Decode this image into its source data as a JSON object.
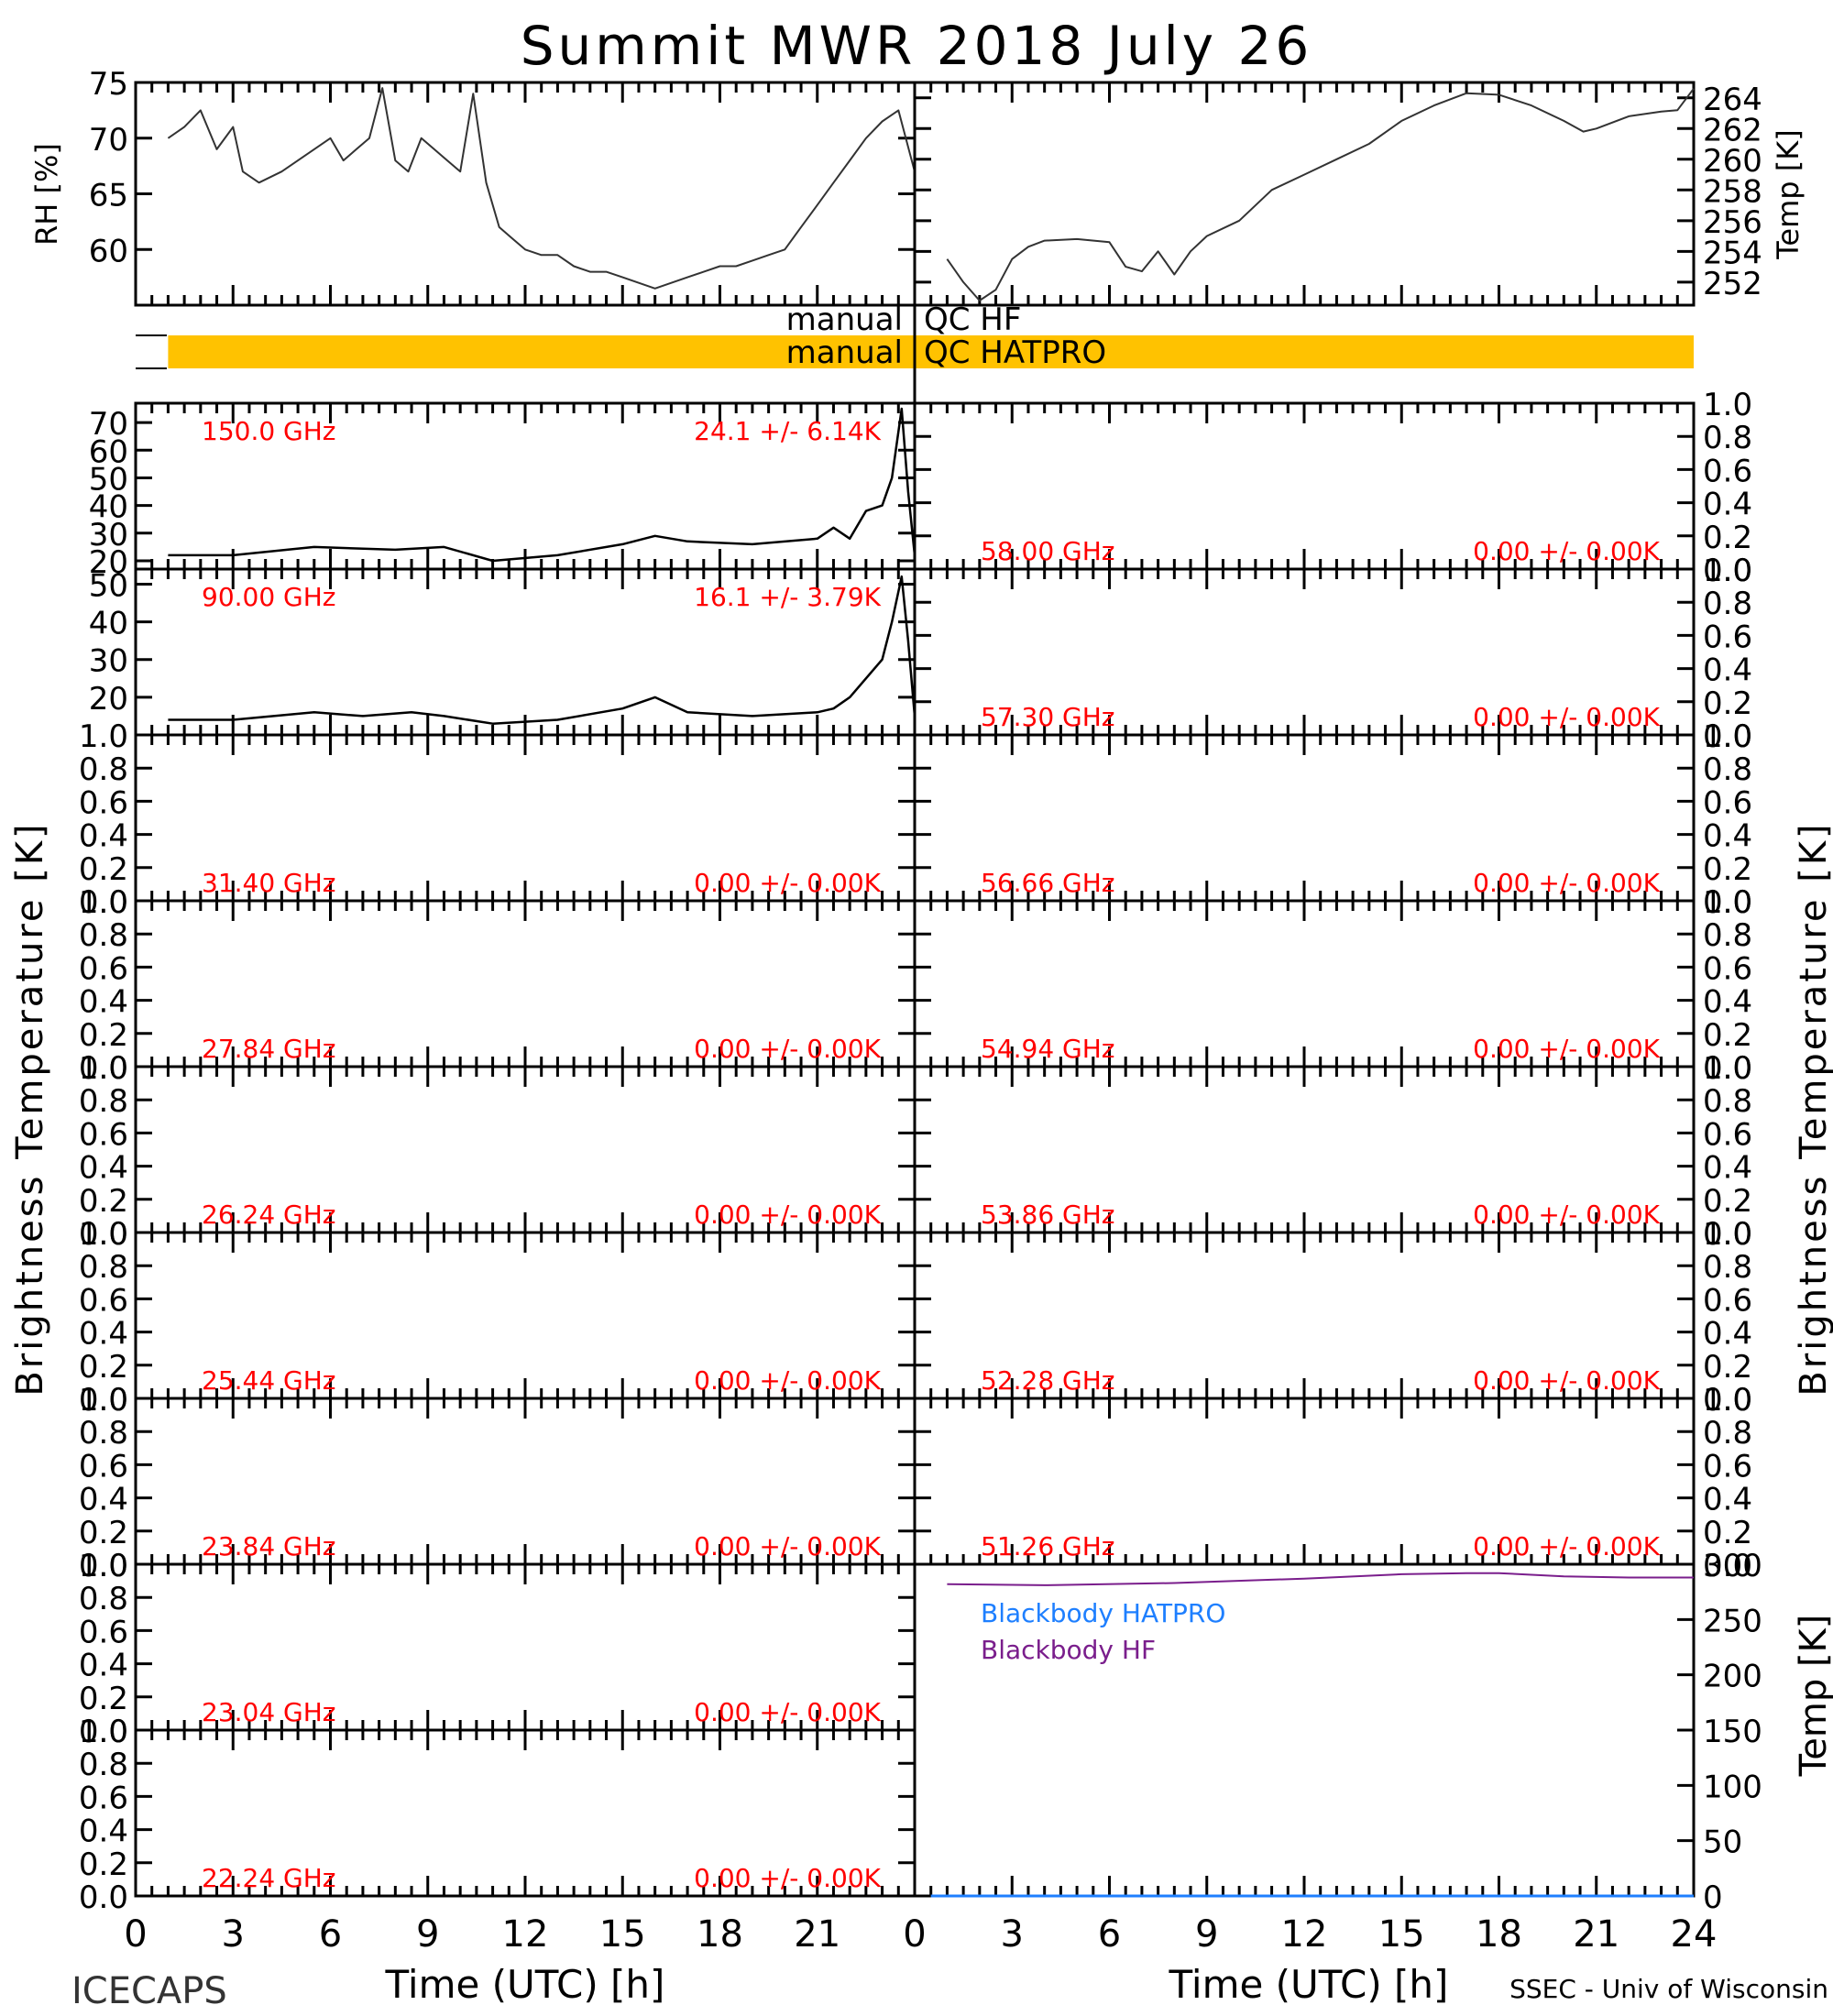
{
  "title": "Summit MWR 2018 July 26",
  "footer": {
    "left": "ICECAPS",
    "right": "SSEC - Univ of Wisconsin",
    "xlabel": "Time (UTC) [h]"
  },
  "colors": {
    "data_red": "#ff0000",
    "qc_bar": "#ffc200",
    "bb_hatpro": "#1e7fff",
    "bb_hf": "#7a1e8c",
    "axis": "#000000"
  },
  "qc": {
    "hf_label_left": "manual",
    "hf_label_right": "QC HF",
    "hatpro_label_left": "manual",
    "hatpro_label_right": "QC HATPRO",
    "hatpro_flag_hours": [
      1.0,
      24
    ]
  },
  "side_labels": {
    "left": "Brightness Temperature [K]",
    "right": "Brightness Temperature [K]"
  },
  "chart_data": [
    {
      "id": "rh",
      "type": "line",
      "ylabel": "RH [%]",
      "ylim": [
        55,
        75
      ],
      "yticks": [
        60,
        65,
        70,
        75
      ],
      "xlim": [
        0,
        24
      ],
      "x_hours": [
        1.0,
        1.5,
        2.0,
        2.5,
        3.0,
        3.3,
        3.8,
        4.5,
        5.0,
        5.5,
        6.0,
        6.4,
        6.8,
        7.2,
        7.6,
        8.0,
        8.4,
        8.8,
        9.2,
        9.6,
        10.0,
        10.4,
        10.8,
        11.2,
        11.6,
        12.0,
        12.5,
        13.0,
        13.5,
        14.0,
        14.5,
        15.0,
        15.5,
        16.0,
        16.5,
        17.0,
        17.5,
        18.0,
        18.5,
        19.0,
        19.5,
        20.0,
        20.5,
        21.0,
        21.5,
        22.0,
        22.5,
        23.0,
        23.5,
        24.0
      ],
      "values": [
        70,
        71,
        72.5,
        69,
        71,
        67,
        66,
        67,
        68,
        69,
        70,
        68,
        69,
        70,
        74.5,
        68,
        67,
        70,
        69,
        68,
        67,
        74,
        66,
        62,
        61,
        60,
        59.5,
        59.5,
        58.5,
        58,
        58,
        57.5,
        57,
        56.5,
        57,
        57.5,
        58,
        58.5,
        58.5,
        59,
        59.5,
        60,
        62,
        64,
        66,
        68,
        70,
        71.5,
        72.5,
        67
      ]
    },
    {
      "id": "temp",
      "type": "line",
      "ylabel": "Temp [K]",
      "ylim": [
        250.5,
        265
      ],
      "yticks": [
        252,
        254,
        256,
        258,
        260,
        262,
        264
      ],
      "xlim": [
        0,
        24
      ],
      "x_hours": [
        1.0,
        1.5,
        2.0,
        2.5,
        3.0,
        3.5,
        4.0,
        5.0,
        6.0,
        6.5,
        7.0,
        7.5,
        8.0,
        8.5,
        9.0,
        10.0,
        11.0,
        12.0,
        13.0,
        14.0,
        15.0,
        16.0,
        17.0,
        18.0,
        19.0,
        20.0,
        20.6,
        21.0,
        22.0,
        23.0,
        23.5,
        24.0
      ],
      "values": [
        253.5,
        252.0,
        250.8,
        251.5,
        253.5,
        254.3,
        254.7,
        254.8,
        254.6,
        253.0,
        252.7,
        254.0,
        252.5,
        254.0,
        255.0,
        256.0,
        258.0,
        259.0,
        260.0,
        261.0,
        262.5,
        263.5,
        264.3,
        264.2,
        263.5,
        262.5,
        261.8,
        262.0,
        262.8,
        263.1,
        263.2,
        264.6
      ]
    },
    {
      "id": "ch-150",
      "type": "line",
      "label": "150.0 GHz",
      "stats": "24.1 +/-  6.14K",
      "ylim": [
        17,
        77
      ],
      "yticks": [
        20,
        30,
        40,
        50,
        60,
        70
      ],
      "xlim": [
        0,
        24
      ],
      "x_hours": [
        1.0,
        3.0,
        5.5,
        8.0,
        9.5,
        11.0,
        13.0,
        15.0,
        16.0,
        17.0,
        19.0,
        21.0,
        21.5,
        22.0,
        22.5,
        23.0,
        23.3,
        23.6,
        23.8,
        24.0
      ],
      "values": [
        22,
        22,
        25,
        24,
        25,
        20,
        22,
        26,
        29,
        27,
        26,
        28,
        32,
        28,
        38,
        40,
        50,
        75,
        45,
        22
      ]
    },
    {
      "id": "ch-58",
      "type": "line",
      "label": "58.00 GHz",
      "stats": "0.00 +/-  0.00K",
      "ylim": [
        0,
        1
      ],
      "yticks": [
        0,
        0.2,
        0.4,
        0.6,
        0.8,
        1.0
      ],
      "values": []
    },
    {
      "id": "ch-90",
      "type": "line",
      "label": "90.00 GHz",
      "stats": "16.1 +/-  3.79K",
      "ylim": [
        10,
        54
      ],
      "yticks": [
        20,
        30,
        40,
        50
      ],
      "xlim": [
        0,
        24
      ],
      "x_hours": [
        1.0,
        3.0,
        5.5,
        7.0,
        8.5,
        9.5,
        11.0,
        13.0,
        15.0,
        16.0,
        17.0,
        19.0,
        21.0,
        21.5,
        22.0,
        22.5,
        23.0,
        23.3,
        23.6,
        23.8,
        24.0
      ],
      "values": [
        14,
        14,
        16,
        15,
        16,
        15,
        13,
        14,
        17,
        20,
        16,
        15,
        16,
        17,
        20,
        25,
        30,
        40,
        52,
        35,
        15
      ]
    },
    {
      "id": "ch-57",
      "type": "line",
      "label": "57.30 GHz",
      "stats": "0.00 +/-  0.00K",
      "ylim": [
        0,
        1
      ],
      "yticks": [
        0,
        0.2,
        0.4,
        0.6,
        0.8,
        1.0
      ],
      "values": []
    },
    {
      "id": "ch-31",
      "type": "line",
      "label": "31.40 GHz",
      "stats": "0.00 +/-  0.00K",
      "ylim": [
        0,
        1
      ],
      "yticks": [
        0,
        0.2,
        0.4,
        0.6,
        0.8,
        1.0
      ],
      "values": []
    },
    {
      "id": "ch-56",
      "type": "line",
      "label": "56.66 GHz",
      "stats": "0.00 +/-  0.00K",
      "ylim": [
        0,
        1
      ],
      "yticks": [
        0,
        0.2,
        0.4,
        0.6,
        0.8,
        1.0
      ],
      "values": []
    },
    {
      "id": "ch-27",
      "type": "line",
      "label": "27.84 GHz",
      "stats": "0.00 +/-  0.00K",
      "ylim": [
        0,
        1
      ],
      "yticks": [
        0,
        0.2,
        0.4,
        0.6,
        0.8,
        1.0
      ],
      "values": []
    },
    {
      "id": "ch-54",
      "type": "line",
      "label": "54.94 GHz",
      "stats": "0.00 +/-  0.00K",
      "ylim": [
        0,
        1
      ],
      "yticks": [
        0,
        0.2,
        0.4,
        0.6,
        0.8,
        1.0
      ],
      "values": []
    },
    {
      "id": "ch-26",
      "type": "line",
      "label": "26.24 GHz",
      "stats": "0.00 +/-  0.00K",
      "ylim": [
        0,
        1
      ],
      "yticks": [
        0,
        0.2,
        0.4,
        0.6,
        0.8,
        1.0
      ],
      "values": []
    },
    {
      "id": "ch-53",
      "type": "line",
      "label": "53.86 GHz",
      "stats": "0.00 +/-  0.00K",
      "ylim": [
        0,
        1
      ],
      "yticks": [
        0,
        0.2,
        0.4,
        0.6,
        0.8,
        1.0
      ],
      "values": []
    },
    {
      "id": "ch-25",
      "type": "line",
      "label": "25.44 GHz",
      "stats": "0.00 +/-  0.00K",
      "ylim": [
        0,
        1
      ],
      "yticks": [
        0,
        0.2,
        0.4,
        0.6,
        0.8,
        1.0
      ],
      "values": []
    },
    {
      "id": "ch-52",
      "type": "line",
      "label": "52.28 GHz",
      "stats": "0.00 +/-  0.00K",
      "ylim": [
        0,
        1
      ],
      "yticks": [
        0,
        0.2,
        0.4,
        0.6,
        0.8,
        1.0
      ],
      "values": []
    },
    {
      "id": "ch-23-84",
      "type": "line",
      "label": "23.84 GHz",
      "stats": "0.00 +/-  0.00K",
      "ylim": [
        0,
        1
      ],
      "yticks": [
        0,
        0.2,
        0.4,
        0.6,
        0.8,
        1.0
      ],
      "values": []
    },
    {
      "id": "ch-51",
      "type": "line",
      "label": "51.26 GHz",
      "stats": "0.00 +/-  0.00K",
      "ylim": [
        0,
        1
      ],
      "yticks": [
        0,
        0.2,
        0.4,
        0.6,
        0.8,
        1.0
      ],
      "values": []
    },
    {
      "id": "ch-23-04",
      "type": "line",
      "label": "23.04 GHz",
      "stats": "0.00 +/-  0.00K",
      "ylim": [
        0,
        1
      ],
      "yticks": [
        0,
        0.2,
        0.4,
        0.6,
        0.8,
        1.0
      ],
      "values": []
    },
    {
      "id": "blackbody",
      "type": "line",
      "ylabel": "Temp [K]",
      "ylim": [
        0,
        300
      ],
      "yticks": [
        0,
        50,
        100,
        150,
        200,
        250,
        300
      ],
      "xlim": [
        0,
        24
      ],
      "series": [
        {
          "name": "Blackbody HATPRO",
          "x_hours": [
            0.5,
            24
          ],
          "values": [
            0,
            0
          ]
        },
        {
          "name": "Blackbody HF",
          "x_hours": [
            1.0,
            4.0,
            8.0,
            12.0,
            15.0,
            17.0,
            18.0,
            20.0,
            22.0,
            24.0
          ],
          "values": [
            282,
            281,
            283,
            287,
            291,
            292,
            292,
            289,
            288,
            288
          ]
        }
      ]
    },
    {
      "id": "ch-22",
      "type": "line",
      "label": "22.24 GHz",
      "stats": "0.00 +/-  0.00K",
      "ylim": [
        0,
        1
      ],
      "yticks": [
        0,
        0.2,
        0.4,
        0.6,
        0.8,
        1.0
      ],
      "values": []
    }
  ],
  "x_axis": {
    "ticks_left": [
      "0",
      "3",
      "6",
      "9",
      "12",
      "15",
      "18",
      "21"
    ],
    "ticks_right": [
      "0",
      "3",
      "6",
      "9",
      "12",
      "15",
      "18",
      "21",
      "24"
    ]
  }
}
